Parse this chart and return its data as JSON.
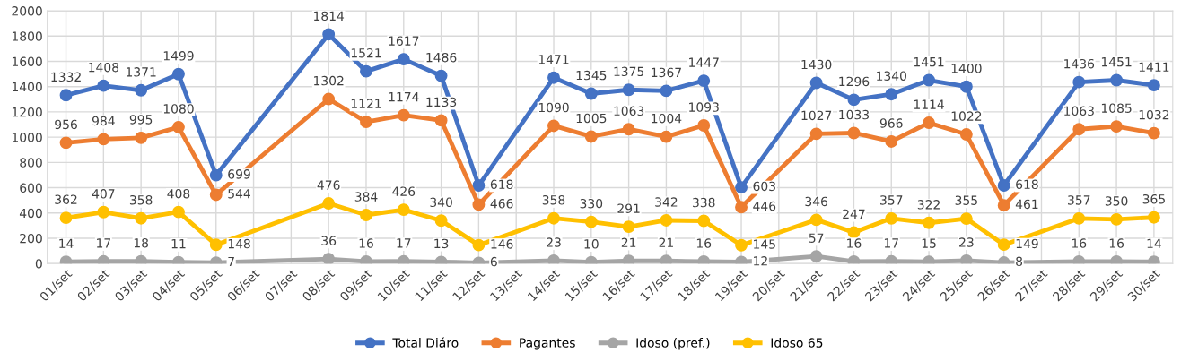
{
  "chart_data": {
    "type": "line",
    "categories": [
      "01/set",
      "02/set",
      "03/set",
      "04/set",
      "05/set",
      "06/set",
      "07/set",
      "08/set",
      "09/set",
      "10/set",
      "11/set",
      "12/set",
      "13/set",
      "14/set",
      "15/set",
      "16/set",
      "17/set",
      "18/set",
      "19/set",
      "20/set",
      "21/set",
      "22/set",
      "23/set",
      "24/set",
      "25/set",
      "26/set",
      "27/set",
      "28/set",
      "29/set",
      "30/set"
    ],
    "series": [
      {
        "name": "Total Diáro",
        "color": "#4472c4",
        "values": [
          1332,
          1408,
          1371,
          1499,
          699,
          null,
          null,
          1814,
          1521,
          1617,
          1486,
          618,
          null,
          1471,
          1345,
          1375,
          1367,
          1447,
          603,
          null,
          1430,
          1296,
          1340,
          1451,
          1400,
          618,
          null,
          1436,
          1451,
          1411
        ]
      },
      {
        "name": "Pagantes",
        "color": "#ed7d31",
        "values": [
          956,
          984,
          995,
          1080,
          544,
          null,
          null,
          1302,
          1121,
          1174,
          1133,
          466,
          null,
          1090,
          1005,
          1063,
          1004,
          1093,
          446,
          null,
          1027,
          1033,
          966,
          1114,
          1022,
          461,
          null,
          1063,
          1085,
          1032
        ]
      },
      {
        "name": "Idoso (pref.)",
        "color": "#a5a5a5",
        "values": [
          14,
          17,
          18,
          11,
          7,
          null,
          null,
          36,
          16,
          17,
          13,
          6,
          null,
          23,
          10,
          21,
          21,
          16,
          12,
          null,
          57,
          16,
          17,
          15,
          23,
          8,
          null,
          16,
          16,
          14
        ]
      },
      {
        "name": "Idoso 65",
        "color": "#ffc000",
        "values": [
          362,
          407,
          358,
          408,
          148,
          null,
          null,
          476,
          384,
          426,
          340,
          146,
          null,
          358,
          330,
          291,
          342,
          338,
          145,
          null,
          346,
          247,
          357,
          322,
          355,
          149,
          null,
          357,
          350,
          365
        ]
      }
    ],
    "ylim": [
      0,
      2000
    ],
    "yticks": [
      0,
      200,
      400,
      600,
      800,
      1000,
      1200,
      1400,
      1600,
      1800,
      2000
    ],
    "grid": true,
    "legend": "bottom",
    "marker": "circle",
    "line_style": "solid",
    "data_labels": true
  }
}
